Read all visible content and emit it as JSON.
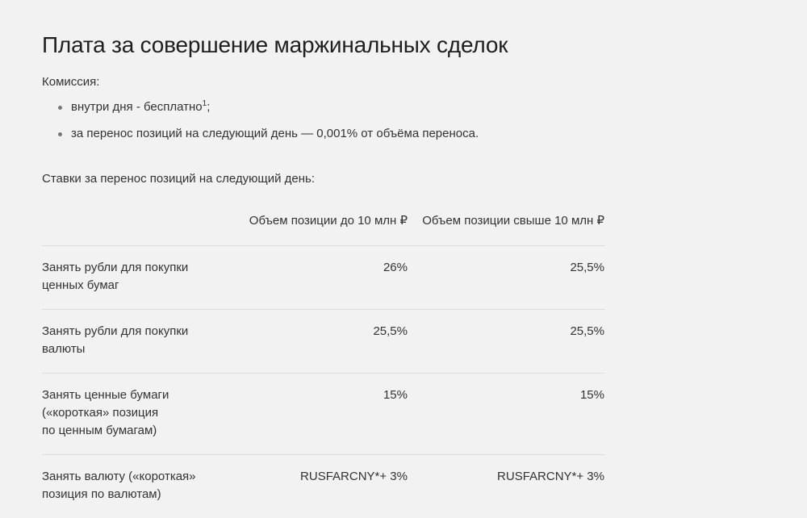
{
  "title": "Плата за совершение маржинальных сделок",
  "commission": {
    "label": "Комиссия:",
    "items": [
      {
        "text": "внутри дня - бесплатно",
        "sup": "1",
        "suffix": ";"
      },
      {
        "text": "за перенос позиций на следующий день — 0,001% от объёма переноса.",
        "sup": "",
        "suffix": ""
      }
    ]
  },
  "rates": {
    "title": "Ставки за перенос позиций на следующий день:",
    "headers": [
      "",
      "Объем позиции до 10 млн ₽",
      "Объем позиции свыше 10 млн ₽"
    ],
    "rows": [
      {
        "label": "Занять рубли для покупки\nценных бумаг",
        "up_to_10m": "26%",
        "over_10m": "25,5%"
      },
      {
        "label": "Занять рубли для покупки\nвалюты",
        "up_to_10m": "25,5%",
        "over_10m": "25,5%"
      },
      {
        "label": "Занять ценные бумаги\n(«короткая» позиция\nпо ценным бумагам)",
        "up_to_10m": "15%",
        "over_10m": "15%"
      },
      {
        "label": "Занять валюту («короткая»\nпозиция по валютам)",
        "up_to_10m": "RUSFARCNY*+ 3%",
        "over_10m": "RUSFARCNY*+ 3%"
      }
    ]
  }
}
